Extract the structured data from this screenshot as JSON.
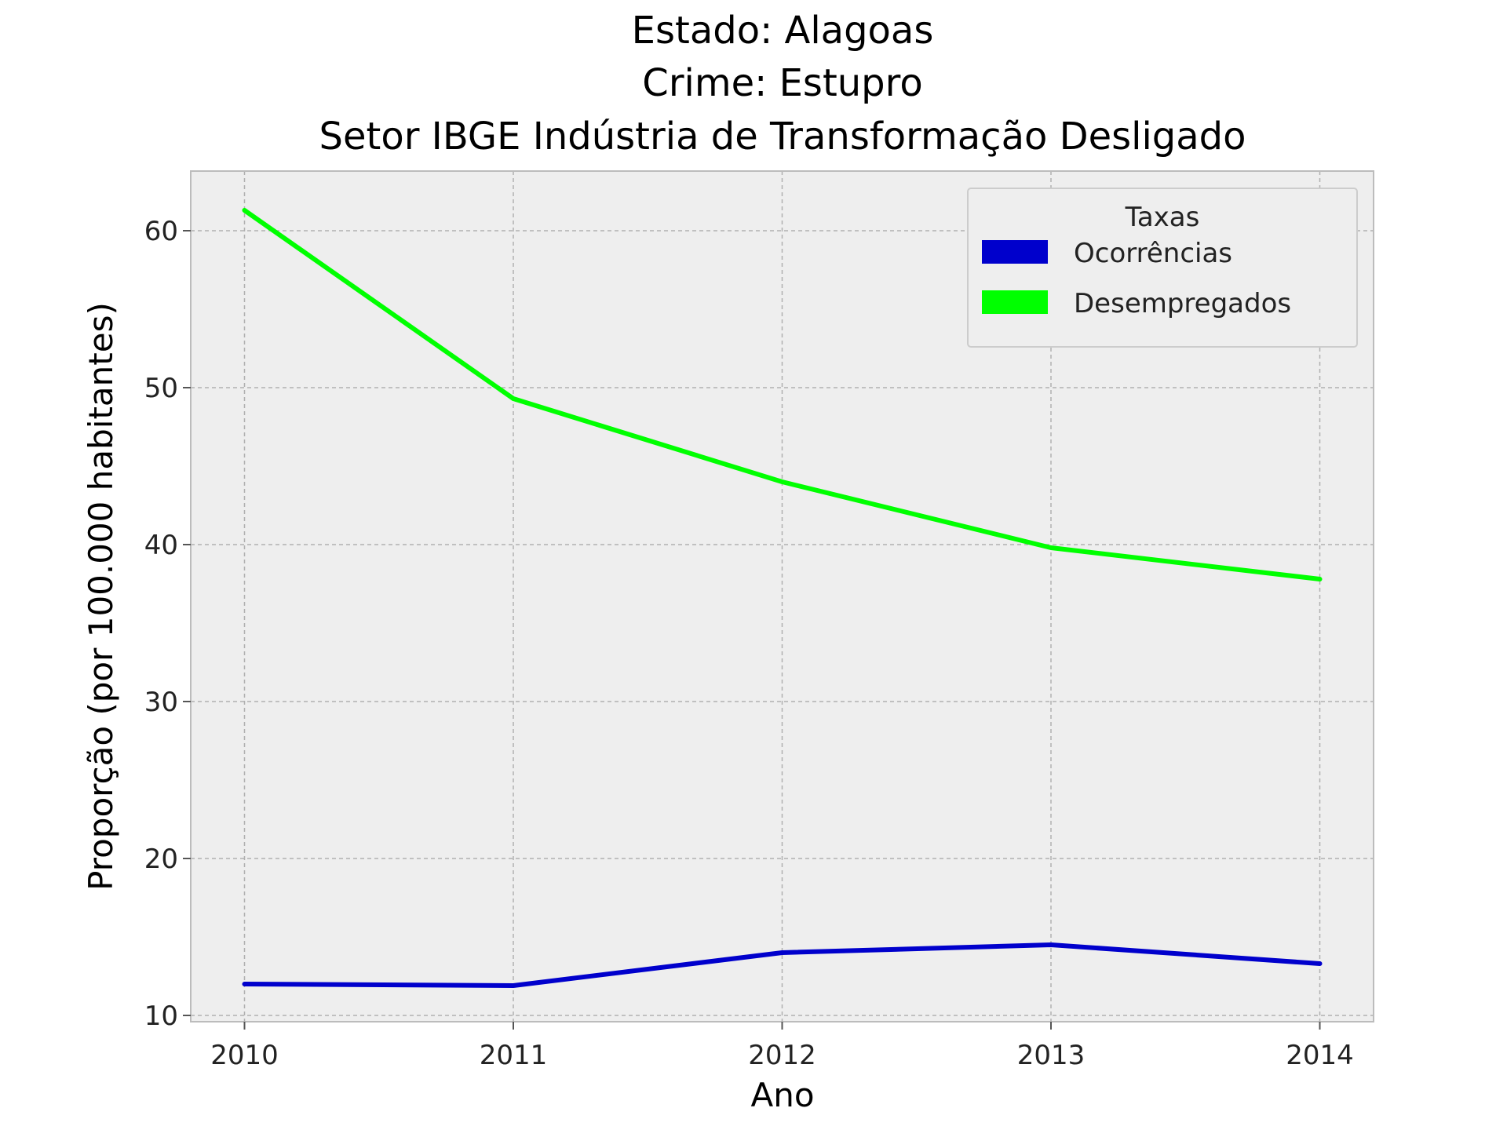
{
  "chart_data": {
    "type": "line",
    "title_lines": [
      "Estado: Alagoas",
      "Crime: Estupro",
      "Setor IBGE  Indústria de Transformação   Desligado"
    ],
    "xlabel": "Ano",
    "ylabel": "Proporção (por 100.000 habitantes)",
    "x": [
      2010,
      2011,
      2012,
      2013,
      2014
    ],
    "x_tick_labels": [
      "2010",
      "2011",
      "2012",
      "2013",
      "2014"
    ],
    "xlim": [
      2009.8,
      2014.2
    ],
    "ylim": [
      9.6,
      63.8
    ],
    "y_ticks": [
      10,
      20,
      30,
      40,
      50,
      60
    ],
    "y_tick_labels": [
      "10",
      "20",
      "30",
      "40",
      "50",
      "60"
    ],
    "grid": true,
    "legend": {
      "title": "Taxas",
      "placement": "top-right"
    },
    "series": [
      {
        "name": "Ocorrências",
        "color": "#0000cc",
        "values": [
          12.0,
          11.9,
          14.0,
          14.5,
          13.3
        ]
      },
      {
        "name": "Desempregados",
        "color": "#00ff00",
        "values": [
          61.3,
          49.3,
          44.0,
          39.8,
          37.8
        ]
      }
    ]
  }
}
